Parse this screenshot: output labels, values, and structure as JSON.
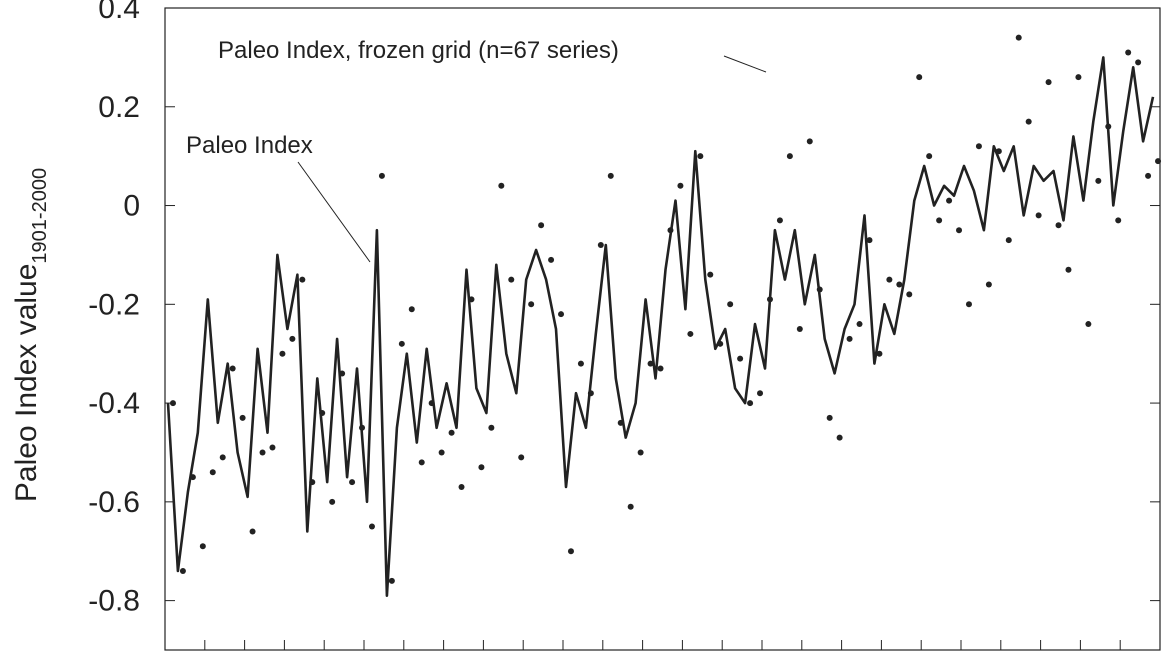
{
  "chart_data": {
    "type": "line",
    "ylabel": "Paleo Index value",
    "ylabel_sub": "1901-2000",
    "annotations": [
      "Paleo Index",
      "Paleo Index, frozen grid (n=67 series)"
    ],
    "categories": [
      null,
      null,
      null,
      null,
      null,
      null,
      null,
      null,
      null,
      null,
      null,
      null,
      null,
      null,
      null,
      null,
      null,
      null,
      null,
      null,
      null,
      null,
      null,
      null,
      null,
      null,
      null,
      null,
      null,
      null,
      null,
      null,
      null,
      null,
      null,
      null,
      null,
      null,
      null,
      null,
      null,
      null,
      null,
      null,
      null,
      null,
      null,
      null,
      null,
      null,
      null,
      null,
      null,
      null,
      null,
      null,
      null,
      null,
      null,
      null,
      null,
      null,
      null,
      null,
      null,
      null,
      null,
      null,
      null,
      null,
      null,
      null,
      null,
      null,
      null,
      null,
      null,
      null,
      null,
      null,
      null,
      null,
      null,
      null,
      null,
      null,
      null,
      null,
      null,
      null,
      null,
      null,
      null,
      null,
      null,
      null,
      null,
      null,
      null,
      null
    ],
    "series": [
      {
        "name": "Paleo Index",
        "color": "#222222",
        "style": "line",
        "values": [
          -0.4,
          -0.74,
          -0.58,
          -0.46,
          -0.19,
          -0.44,
          -0.32,
          -0.5,
          -0.59,
          -0.29,
          -0.46,
          -0.1,
          -0.25,
          -0.14,
          -0.66,
          -0.35,
          -0.56,
          -0.27,
          -0.55,
          -0.33,
          -0.6,
          -0.05,
          -0.79,
          -0.45,
          -0.3,
          -0.48,
          -0.29,
          -0.45,
          -0.36,
          -0.45,
          -0.13,
          -0.37,
          -0.42,
          -0.12,
          -0.3,
          -0.38,
          -0.15,
          -0.09,
          -0.15,
          -0.25,
          -0.57,
          -0.38,
          -0.45,
          -0.26,
          -0.08,
          -0.35,
          -0.47,
          -0.4,
          -0.19,
          -0.35,
          -0.13,
          0.01,
          -0.21,
          0.11,
          -0.15,
          -0.29,
          -0.25,
          -0.37,
          -0.4,
          -0.24,
          -0.33,
          -0.05,
          -0.15,
          -0.05,
          -0.2,
          -0.1,
          -0.27,
          -0.34,
          -0.25,
          -0.2,
          -0.02,
          -0.32,
          -0.2,
          -0.26,
          -0.15,
          0.01,
          0.08,
          0.0,
          0.04,
          0.02,
          0.08,
          0.03,
          -0.05,
          0.12,
          0.07,
          0.12,
          -0.02,
          0.08,
          0.05,
          0.07,
          -0.03,
          0.14,
          0.01,
          0.17,
          0.3,
          0.0,
          0.15,
          0.28,
          0.13,
          0.22
        ]
      },
      {
        "name": "Paleo Index, frozen grid (n=67 series)",
        "color": "#222222",
        "style": "dots",
        "values": [
          -0.4,
          -0.74,
          -0.55,
          -0.69,
          -0.54,
          -0.51,
          -0.33,
          -0.43,
          -0.66,
          -0.5,
          -0.49,
          -0.3,
          -0.27,
          -0.15,
          -0.56,
          -0.42,
          -0.6,
          -0.34,
          -0.56,
          -0.45,
          -0.65,
          0.06,
          -0.76,
          -0.28,
          -0.21,
          -0.52,
          -0.4,
          -0.5,
          -0.46,
          -0.57,
          -0.19,
          -0.53,
          -0.45,
          0.04,
          -0.15,
          -0.51,
          -0.2,
          -0.04,
          -0.11,
          -0.22,
          -0.7,
          -0.32,
          -0.38,
          -0.08,
          0.06,
          -0.44,
          -0.61,
          -0.5,
          -0.32,
          -0.33,
          -0.05,
          0.04,
          -0.26,
          0.1,
          -0.14,
          -0.28,
          -0.2,
          -0.31,
          -0.4,
          -0.38,
          -0.19,
          -0.03,
          0.1,
          -0.25,
          0.13,
          -0.17,
          -0.43,
          -0.47,
          -0.27,
          -0.24,
          -0.07,
          -0.3,
          -0.15,
          -0.16,
          -0.18,
          0.26,
          0.1,
          -0.03,
          0.01,
          -0.05,
          -0.2,
          0.12,
          -0.16,
          0.11,
          -0.07,
          0.34,
          0.17,
          -0.02,
          0.25,
          -0.04,
          -0.13,
          0.26,
          -0.24,
          0.05,
          0.16,
          -0.03,
          0.31,
          0.29,
          0.06,
          0.09
        ]
      }
    ],
    "ylim": [
      -0.9,
      0.4
    ],
    "yticks": [
      -0.8,
      -0.6,
      -0.4,
      -0.2,
      0,
      0.2,
      0.4
    ]
  }
}
